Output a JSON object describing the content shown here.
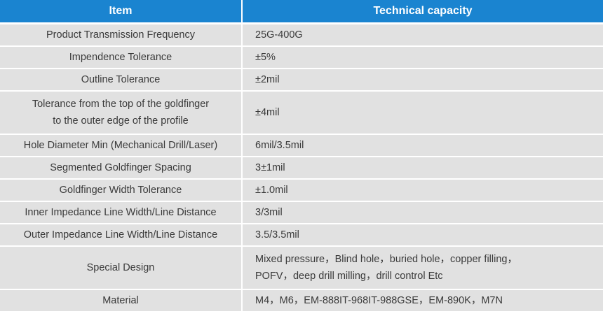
{
  "header": {
    "item": "Item",
    "capacity": "Technical capacity"
  },
  "rows": [
    {
      "item": [
        "Product Transmission Frequency"
      ],
      "capacity": [
        "25G-400G"
      ]
    },
    {
      "item": [
        "Impendence Tolerance"
      ],
      "capacity": [
        "±5%"
      ]
    },
    {
      "item": [
        "Outline Tolerance"
      ],
      "capacity": [
        "±2mil"
      ]
    },
    {
      "item": [
        "Tolerance from the top of the goldfinger",
        "to the outer edge of the profile"
      ],
      "capacity": [
        "±4mil"
      ]
    },
    {
      "item": [
        "Hole Diameter Min (Mechanical Drill/Laser)"
      ],
      "capacity": [
        "6mil/3.5mil"
      ]
    },
    {
      "item": [
        "Segmented Goldfinger Spacing"
      ],
      "capacity": [
        "3±1mil"
      ]
    },
    {
      "item": [
        "Goldfinger Width Tolerance"
      ],
      "capacity": [
        "±1.0mil"
      ]
    },
    {
      "item": [
        "Inner Impedance Line Width/Line Distance"
      ],
      "capacity": [
        "3/3mil"
      ]
    },
    {
      "item": [
        "Outer Impedance Line Width/Line Distance"
      ],
      "capacity": [
        "3.5/3.5mil"
      ]
    },
    {
      "item": [
        "Special Design"
      ],
      "capacity": [
        "Mixed pressure，Blind hole，buried hole，copper filling，",
        "POFV，deep drill milling，drill control Etc"
      ]
    },
    {
      "item": [
        "Material"
      ],
      "capacity": [
        "M4，M6，EM-888IT-968IT-988GSE，EM-890K，M7N"
      ]
    }
  ]
}
